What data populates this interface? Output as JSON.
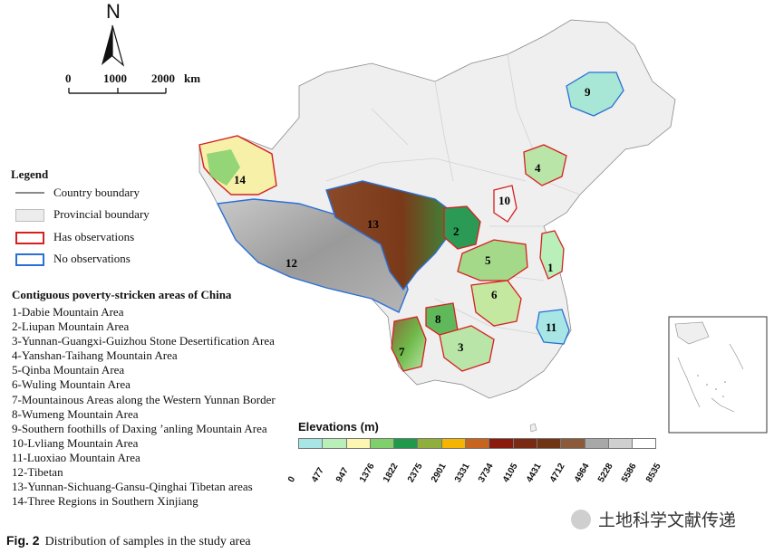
{
  "north_arrow": {
    "label": "N"
  },
  "scale_bar": {
    "ticks": [
      "0",
      "1000",
      "2000"
    ],
    "unit": "km"
  },
  "legend": {
    "title": "Legend",
    "items": [
      {
        "label": "Country boundary",
        "color": "#8a8a8a"
      },
      {
        "label": "Provincial boundary",
        "color": "#ececec"
      },
      {
        "label": "Has observations",
        "color": "#d62020"
      },
      {
        "label": "No observations",
        "color": "#2a6fd6"
      }
    ]
  },
  "areas": {
    "title": "Contiguous poverty-stricken areas of China",
    "items": [
      "1-Dabie Mountain Area",
      "2-Liupan Mountain Area",
      "3-Yunnan-Guangxi-Guizhou Stone Desertification Area",
      "4-Yanshan-Taihang Mountain Area",
      "5-Qinba Mountain Area",
      "6-Wuling Mountain Area",
      "7-Mountainous Areas along the Western Yunnan Border",
      "8-Wumeng Mountain Area",
      "9-Southern foothills of Daxing ’anling Mountain Area",
      "10-Lvliang Mountain Area",
      "11-Luoxiao Mountain Area",
      "12-Tibetan",
      "13-Yunnan-Sichuang-Gansu-Qinghai Tibetan areas",
      "14-Three Regions in Southern Xinjiang"
    ]
  },
  "map_labels": [
    "1",
    "2",
    "3",
    "4",
    "5",
    "6",
    "7",
    "8",
    "9",
    "10",
    "11",
    "12",
    "13",
    "14"
  ],
  "elevation": {
    "title": "Elevations (m)",
    "ticks": [
      "0",
      "477",
      "947",
      "1376",
      "1822",
      "2375",
      "2901",
      "3331",
      "3734",
      "4105",
      "4431",
      "4712",
      "4964",
      "5228",
      "5586",
      "8535"
    ],
    "colors": [
      "#a8e6e6",
      "#b9f0b9",
      "#fbf6b0",
      "#7fcf6a",
      "#1f9a4a",
      "#8fae3a",
      "#f4b400",
      "#c9641e",
      "#8b1a0e",
      "#7a2a12",
      "#6f3515",
      "#8a5a3a",
      "#a8a8a8",
      "#cfcfcf",
      "#ffffff"
    ]
  },
  "caption": {
    "fig": "Fig. 2",
    "text": "Distribution of samples in the study area"
  },
  "watermark": {
    "text": "土地科学文献传递"
  }
}
